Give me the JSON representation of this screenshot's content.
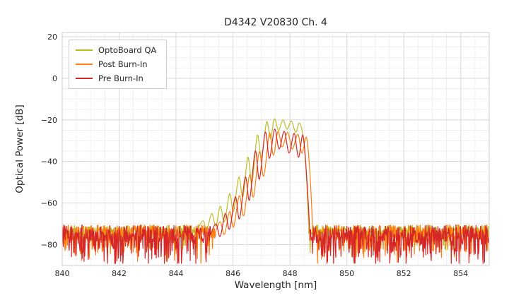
{
  "chart_data": {
    "type": "line",
    "title": "D4342 V20830 Ch. 4",
    "xlabel": "Wavelength [nm]",
    "ylabel": "Optical Power [dB]",
    "xlim": [
      840,
      855
    ],
    "ylim": [
      -90,
      22
    ],
    "xticks": [
      {
        "v": 840,
        "label": "840"
      },
      {
        "v": 842,
        "label": "842"
      },
      {
        "v": 844,
        "label": "844"
      },
      {
        "v": 846,
        "label": "846"
      },
      {
        "v": 848,
        "label": "848"
      },
      {
        "v": 850,
        "label": "850"
      },
      {
        "v": 852,
        "label": "852"
      },
      {
        "v": 854,
        "label": "854"
      }
    ],
    "yticks": [
      {
        "v": 20,
        "label": "20"
      },
      {
        "v": 0,
        "label": "0"
      },
      {
        "v": -20,
        "label": "−20"
      },
      {
        "v": -40,
        "label": "−40"
      },
      {
        "v": -60,
        "label": "−60"
      },
      {
        "v": -80,
        "label": "−80"
      }
    ],
    "grid": {
      "minor_x": 0.5,
      "major_x": 2,
      "minor_y": 5,
      "major_y": 20,
      "minor_color": "#ededed",
      "major_color": "#d9d9d9",
      "border_color": "#cccccc"
    },
    "legend_position": "upper-left",
    "series": [
      {
        "name": "OptoBoard QA",
        "color": "#bcbd22",
        "peak_points": [
          [
            844.78,
            -72
          ],
          [
            844.95,
            -68.5
          ],
          [
            845.08,
            -73
          ],
          [
            845.25,
            -65
          ],
          [
            845.4,
            -71
          ],
          [
            845.55,
            -61.5
          ],
          [
            845.7,
            -69
          ],
          [
            845.88,
            -55.5
          ],
          [
            846.02,
            -64
          ],
          [
            846.2,
            -47.5
          ],
          [
            846.35,
            -57
          ],
          [
            846.52,
            -38
          ],
          [
            846.67,
            -50
          ],
          [
            846.85,
            -27.5
          ],
          [
            847.0,
            -38
          ],
          [
            847.18,
            -21
          ],
          [
            847.32,
            -29
          ],
          [
            847.45,
            -19.5
          ],
          [
            847.6,
            -25
          ],
          [
            847.75,
            -20
          ],
          [
            847.9,
            -24.5
          ],
          [
            848.05,
            -20.5
          ],
          [
            848.2,
            -26
          ],
          [
            848.33,
            -21.5
          ],
          [
            848.45,
            -27
          ],
          [
            848.55,
            -40
          ],
          [
            848.66,
            -71
          ]
        ],
        "noise": {
          "segments": [
            [
              840,
              844.78
            ],
            [
              848.66,
              855
            ]
          ],
          "base": -70.5,
          "jitter": 5,
          "spike_prob": 0.18,
          "spike_amp": 9,
          "step": 0.016,
          "seed": 7
        }
      },
      {
        "name": "Post Burn-In",
        "color": "#ff7f0e",
        "peak_points": [
          [
            845.38,
            -74
          ],
          [
            845.55,
            -69
          ],
          [
            845.7,
            -75
          ],
          [
            845.88,
            -64
          ],
          [
            846.02,
            -71.5
          ],
          [
            846.22,
            -56.5
          ],
          [
            846.38,
            -66
          ],
          [
            846.58,
            -46.5
          ],
          [
            846.72,
            -57
          ],
          [
            846.92,
            -35.5
          ],
          [
            847.08,
            -47
          ],
          [
            847.28,
            -26.5
          ],
          [
            847.42,
            -37
          ],
          [
            847.58,
            -25.5
          ],
          [
            847.73,
            -33
          ],
          [
            847.92,
            -26
          ],
          [
            848.08,
            -34
          ],
          [
            848.28,
            -27
          ],
          [
            848.42,
            -36
          ],
          [
            848.58,
            -28.5
          ],
          [
            848.7,
            -45
          ],
          [
            848.8,
            -73
          ]
        ],
        "noise": {
          "segments": [
            [
              840,
              845.38
            ],
            [
              848.8,
              855
            ]
          ],
          "base": -70.5,
          "jitter": 7.5,
          "spike_prob": 0.3,
          "spike_amp": 12,
          "step": 0.014,
          "seed": 13
        }
      },
      {
        "name": "Pre Burn-In",
        "color": "#d62728",
        "peak_points": [
          [
            845.22,
            -75
          ],
          [
            845.4,
            -70
          ],
          [
            845.55,
            -76
          ],
          [
            845.73,
            -65
          ],
          [
            845.88,
            -72.5
          ],
          [
            846.08,
            -57
          ],
          [
            846.23,
            -67.5
          ],
          [
            846.43,
            -47.5
          ],
          [
            846.58,
            -58.5
          ],
          [
            846.78,
            -35
          ],
          [
            846.93,
            -48.5
          ],
          [
            847.13,
            -26
          ],
          [
            847.28,
            -38.5
          ],
          [
            847.46,
            -24.5
          ],
          [
            847.62,
            -34
          ],
          [
            847.8,
            -25.5
          ],
          [
            847.97,
            -36
          ],
          [
            848.15,
            -26.5
          ],
          [
            848.3,
            -38
          ],
          [
            848.46,
            -27.5
          ],
          [
            848.6,
            -50
          ],
          [
            848.7,
            -74
          ]
        ],
        "noise": {
          "segments": [
            [
              840,
              845.22
            ],
            [
              848.7,
              855
            ]
          ],
          "base": -70.5,
          "jitter": 8.5,
          "spike_prob": 0.38,
          "spike_amp": 13,
          "step": 0.013,
          "seed": 29
        }
      }
    ]
  }
}
